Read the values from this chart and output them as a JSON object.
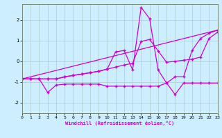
{
  "xlabel": "Windchill (Refroidissement éolien,°C)",
  "bg_color": "#cceeff",
  "line_color": "#cc00cc",
  "grid_color": "#aacccc",
  "xlim": [
    0,
    23
  ],
  "ylim": [
    -2.5,
    2.75
  ],
  "yticks": [
    -2,
    -1,
    0,
    1,
    2
  ],
  "xticks": [
    0,
    1,
    2,
    3,
    4,
    5,
    6,
    7,
    8,
    9,
    10,
    11,
    12,
    13,
    14,
    15,
    16,
    17,
    18,
    19,
    20,
    21,
    22,
    23
  ],
  "lines": [
    {
      "x": [
        0,
        1,
        2,
        3,
        4,
        5,
        6,
        7,
        8,
        9,
        10,
        11,
        12,
        13,
        14,
        15,
        16,
        17,
        18,
        19,
        20,
        21,
        22,
        23
      ],
      "y": [
        -0.85,
        -0.85,
        -0.85,
        -0.85,
        -0.85,
        -0.75,
        -0.68,
        -0.62,
        -0.55,
        -0.48,
        -0.38,
        -0.28,
        -0.18,
        -0.1,
        0.95,
        1.05,
        0.5,
        -0.05,
        0.0,
        0.05,
        0.1,
        0.2,
        1.1,
        1.4
      ]
    },
    {
      "x": [
        0,
        1,
        2,
        3,
        4,
        5,
        6,
        7,
        8,
        9,
        10,
        11,
        12,
        13,
        14,
        15,
        16,
        17,
        18,
        19,
        20,
        21,
        22,
        23
      ],
      "y": [
        -0.85,
        -0.85,
        -0.85,
        -1.5,
        -1.15,
        -1.1,
        -1.1,
        -1.1,
        -1.1,
        -1.1,
        -1.2,
        -1.2,
        -1.2,
        -1.2,
        -1.2,
        -1.2,
        -1.2,
        -1.05,
        -1.6,
        -1.05,
        -1.05,
        -1.05,
        -1.05,
        -1.05
      ]
    },
    {
      "x": [
        0,
        1,
        2,
        3,
        4,
        5,
        6,
        7,
        8,
        9,
        10,
        11,
        12,
        13,
        14,
        15,
        16,
        17,
        18,
        19,
        20,
        21,
        22,
        23
      ],
      "y": [
        -0.85,
        -0.85,
        -0.85,
        -0.85,
        -0.85,
        -0.75,
        -0.68,
        -0.62,
        -0.55,
        -0.48,
        -0.38,
        0.45,
        0.52,
        -0.42,
        2.6,
        2.05,
        -0.42,
        -1.05,
        -0.75,
        -0.75,
        0.52,
        1.1,
        1.35,
        1.5
      ]
    },
    {
      "x": [
        0,
        23
      ],
      "y": [
        -0.85,
        1.5
      ]
    }
  ]
}
